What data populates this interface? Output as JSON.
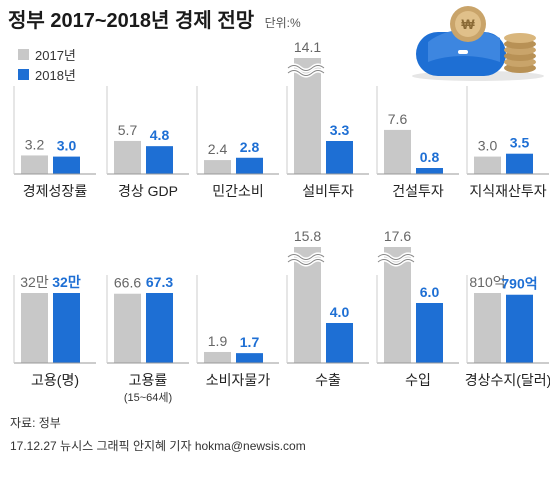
{
  "title": "정부 2017~2018년 경제 전망",
  "unit": "단위:%",
  "legend": [
    {
      "label": "2017년",
      "color": "#c8c8c8"
    },
    {
      "label": "2018년",
      "color": "#1e6fd4"
    }
  ],
  "colors": {
    "y2017": "#c8c8c8",
    "y2018": "#1e6fd4",
    "label2017": "#666666",
    "label2018": "#1e6fd4"
  },
  "chart_data": {
    "type": "bar",
    "series": [
      {
        "name": "2017년"
      },
      {
        "name": "2018년"
      }
    ],
    "panels": [
      {
        "category": "경제성장률",
        "values": [
          3.2,
          3.0
        ],
        "labels": [
          "3.2",
          "3.0"
        ]
      },
      {
        "category": "경상 GDP",
        "values": [
          5.7,
          4.8
        ],
        "labels": [
          "5.7",
          "4.8"
        ]
      },
      {
        "category": "민간소비",
        "values": [
          2.4,
          2.8
        ],
        "labels": [
          "2.4",
          "2.8"
        ]
      },
      {
        "category": "설비투자",
        "values": [
          14.1,
          3.3
        ],
        "labels": [
          "14.1",
          "3.3"
        ],
        "broken": true
      },
      {
        "category": "건설투자",
        "values": [
          7.6,
          0.8
        ],
        "labels": [
          "7.6",
          "0.8"
        ]
      },
      {
        "category": "지식재산투자",
        "values": [
          3.0,
          3.5
        ],
        "labels": [
          "3.0",
          "3.5"
        ]
      },
      {
        "category": "고용(명)",
        "values": [
          320000,
          320000
        ],
        "labels": [
          "32만",
          "32만"
        ]
      },
      {
        "category": "고용률",
        "sub": "(15~64세)",
        "values": [
          66.6,
          67.3
        ],
        "labels": [
          "66.6",
          "67.3"
        ]
      },
      {
        "category": "소비자물가",
        "values": [
          1.9,
          1.7
        ],
        "labels": [
          "1.9",
          "1.7"
        ]
      },
      {
        "category": "수출",
        "values": [
          15.8,
          4.0
        ],
        "labels": [
          "15.8",
          "4.0"
        ],
        "broken": true
      },
      {
        "category": "수입",
        "values": [
          17.6,
          6.0
        ],
        "labels": [
          "17.6",
          "6.0"
        ],
        "broken": true
      },
      {
        "category": "경상수지(달러)",
        "values": [
          810,
          790
        ],
        "labels": [
          "810억",
          "790억"
        ]
      }
    ]
  },
  "footer": {
    "source": "자료: 정부",
    "credit": "17.12.27 뉴시스 그래픽 안지혜 기자 hokma@newsis.com"
  }
}
